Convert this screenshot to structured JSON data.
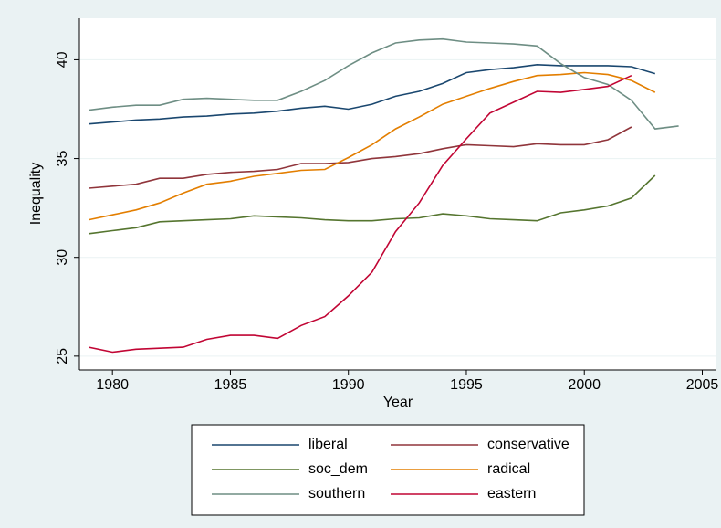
{
  "chart_data": {
    "type": "line",
    "xlabel": "Year",
    "ylabel": "Inequality",
    "x": [
      1979,
      1980,
      1981,
      1982,
      1983,
      1984,
      1985,
      1986,
      1987,
      1988,
      1989,
      1990,
      1991,
      1992,
      1993,
      1994,
      1995,
      1996,
      1997,
      1998,
      1999,
      2000,
      2001,
      2002,
      2003,
      2004
    ],
    "series": [
      {
        "name": "liberal",
        "color": "#1a476f",
        "values": [
          36.75,
          36.85,
          36.95,
          37.0,
          37.1,
          37.15,
          37.25,
          37.3,
          37.4,
          37.55,
          37.65,
          37.5,
          37.75,
          38.15,
          38.4,
          38.8,
          39.35,
          39.5,
          39.6,
          39.75,
          39.7,
          39.7,
          39.7,
          39.65,
          39.3,
          null
        ]
      },
      {
        "name": "conservative",
        "color": "#90353b",
        "values": [
          33.5,
          33.6,
          33.7,
          34.0,
          34.0,
          34.2,
          34.3,
          34.35,
          34.45,
          34.75,
          34.75,
          34.8,
          35.0,
          35.1,
          35.25,
          35.5,
          35.7,
          35.65,
          35.6,
          35.75,
          35.7,
          35.7,
          35.95,
          36.6,
          null,
          null
        ]
      },
      {
        "name": "soc_dem",
        "color": "#55752f",
        "values": [
          31.2,
          31.35,
          31.5,
          31.8,
          31.85,
          31.9,
          31.95,
          32.1,
          32.05,
          32.0,
          31.9,
          31.85,
          31.85,
          31.95,
          32.0,
          32.2,
          32.1,
          31.95,
          31.9,
          31.85,
          32.25,
          32.4,
          32.6,
          33.0,
          34.15,
          null
        ]
      },
      {
        "name": "radical",
        "color": "#e37e00",
        "values": [
          31.9,
          32.15,
          32.4,
          32.75,
          33.25,
          33.7,
          33.85,
          34.1,
          34.25,
          34.4,
          34.45,
          35.05,
          35.7,
          36.5,
          37.1,
          37.75,
          38.15,
          38.55,
          38.9,
          39.2,
          39.25,
          39.35,
          39.25,
          38.95,
          38.35,
          null
        ]
      },
      {
        "name": "southern",
        "color": "#6e8e84",
        "values": [
          37.45,
          37.6,
          37.7,
          37.7,
          38.0,
          38.05,
          38.0,
          37.95,
          37.95,
          38.4,
          38.95,
          39.7,
          40.35,
          40.85,
          41.0,
          41.05,
          40.9,
          40.85,
          40.8,
          40.7,
          39.8,
          39.1,
          38.75,
          37.95,
          36.5,
          36.65
        ]
      },
      {
        "name": "eastern",
        "color": "#c10534",
        "values": [
          25.45,
          25.2,
          25.35,
          25.4,
          25.45,
          25.85,
          26.05,
          26.05,
          25.9,
          26.55,
          27.0,
          28.05,
          29.25,
          31.3,
          32.75,
          34.65,
          36.0,
          37.3,
          37.85,
          38.4,
          38.35,
          38.5,
          38.65,
          39.2,
          null,
          null
        ]
      }
    ],
    "xlim": [
      1978.6,
      2005.6
    ],
    "xticks": [
      1980,
      1985,
      1990,
      1995,
      2000,
      2005
    ],
    "ylim": [
      24.3,
      42.1
    ],
    "yticks": [
      25,
      30,
      35,
      40
    ],
    "grid": true,
    "legend": "bottom"
  }
}
